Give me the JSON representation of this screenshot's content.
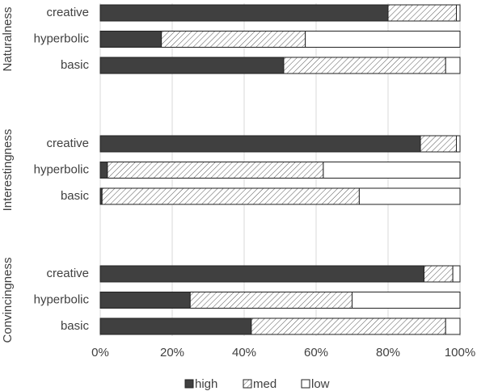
{
  "chart_data": {
    "type": "bar",
    "orientation": "horizontal",
    "stacked": true,
    "groups": [
      "Naturalness",
      "Interestingness",
      "Convincingness"
    ],
    "categories": [
      "creative",
      "hyperbolic",
      "basic"
    ],
    "series": [
      {
        "name": "high",
        "color": "#404040",
        "hatch": false,
        "values": [
          [
            80,
            17,
            51
          ],
          [
            89,
            2,
            0.5
          ],
          [
            90,
            25,
            42
          ]
        ]
      },
      {
        "name": "med",
        "color": "#ffffff",
        "hatch": true,
        "values": [
          [
            19,
            40,
            45
          ],
          [
            10,
            60,
            71.5
          ],
          [
            8,
            45,
            54
          ]
        ]
      },
      {
        "name": "low",
        "color": "#ffffff",
        "hatch": false,
        "values": [
          [
            1,
            43,
            4
          ],
          [
            1,
            38,
            28
          ],
          [
            2,
            30,
            4
          ]
        ]
      }
    ],
    "xlim": [
      0,
      100
    ],
    "xticks": [
      {
        "value": 0,
        "label": "0%"
      },
      {
        "value": 20,
        "label": "20%"
      },
      {
        "value": 40,
        "label": "40%"
      },
      {
        "value": 60,
        "label": "60%"
      },
      {
        "value": 80,
        "label": "80%"
      },
      {
        "value": 100,
        "label": "100%"
      }
    ],
    "grid": true,
    "legend_position": "bottom"
  }
}
